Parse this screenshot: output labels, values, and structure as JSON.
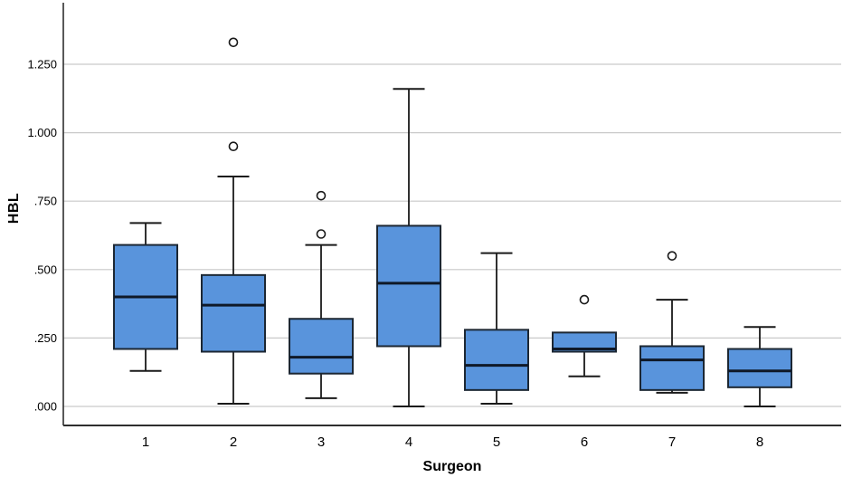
{
  "chart_data": {
    "type": "boxplot",
    "title": "",
    "xlabel": "Surgeon",
    "ylabel": "HBL",
    "categories": [
      "1",
      "2",
      "3",
      "4",
      "5",
      "6",
      "7",
      "8"
    ],
    "y_ticks": [
      {
        "label": ".000",
        "value": 0.0
      },
      {
        "label": ".250",
        "value": 0.25
      },
      {
        "label": ".500",
        "value": 0.5
      },
      {
        "label": ".750",
        "value": 0.75
      },
      {
        "label": "1.000",
        "value": 1.0
      },
      {
        "label": "1.250",
        "value": 1.25
      }
    ],
    "ylim": [
      -0.07,
      1.48
    ],
    "grid": true,
    "legend": "none",
    "series": [
      {
        "category": "1",
        "whisker_low": 0.13,
        "q1": 0.21,
        "median": 0.4,
        "q3": 0.59,
        "whisker_high": 0.67,
        "outliers": []
      },
      {
        "category": "2",
        "whisker_low": 0.01,
        "q1": 0.2,
        "median": 0.37,
        "q3": 0.48,
        "whisker_high": 0.84,
        "outliers": [
          0.95,
          1.33
        ]
      },
      {
        "category": "3",
        "whisker_low": 0.03,
        "q1": 0.12,
        "median": 0.18,
        "q3": 0.32,
        "whisker_high": 0.59,
        "outliers": [
          0.63,
          0.77
        ]
      },
      {
        "category": "4",
        "whisker_low": 0.0,
        "q1": 0.22,
        "median": 0.45,
        "q3": 0.66,
        "whisker_high": 1.16,
        "outliers": []
      },
      {
        "category": "5",
        "whisker_low": 0.01,
        "q1": 0.06,
        "median": 0.15,
        "q3": 0.28,
        "whisker_high": 0.56,
        "outliers": []
      },
      {
        "category": "6",
        "whisker_low": 0.11,
        "q1": 0.2,
        "median": 0.21,
        "q3": 0.27,
        "whisker_high": 0.27,
        "outliers": [
          0.39
        ]
      },
      {
        "category": "7",
        "whisker_low": 0.05,
        "q1": 0.06,
        "median": 0.17,
        "q3": 0.22,
        "whisker_high": 0.39,
        "outliers": [
          0.55
        ]
      },
      {
        "category": "8",
        "whisker_low": 0.0,
        "q1": 0.07,
        "median": 0.13,
        "q3": 0.21,
        "whisker_high": 0.29,
        "outliers": []
      }
    ],
    "colors": {
      "box_fill": "#5994dc",
      "box_border": "#1c2733",
      "median": "#0f1928",
      "whisker": "#1a1a1a",
      "outlier_stroke": "#1a1a1a",
      "outlier_fill": "#ffffff",
      "gridline": "#c9c9c9",
      "axis": "#2e2e2e",
      "text": "#000000"
    }
  }
}
